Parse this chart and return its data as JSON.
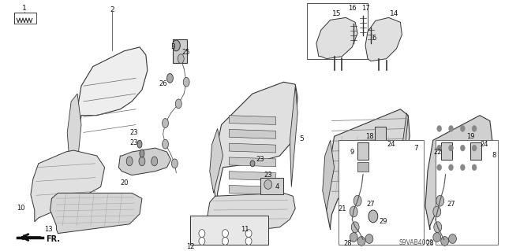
{
  "bg_color": "#ffffff",
  "diagram_code": "S9VAB4002",
  "fig_width": 6.4,
  "fig_height": 3.19,
  "dpi": 100,
  "line_color": "#333333",
  "fill_light": "#e8e8e8",
  "fill_mid": "#cccccc",
  "fill_dark": "#aaaaaa"
}
